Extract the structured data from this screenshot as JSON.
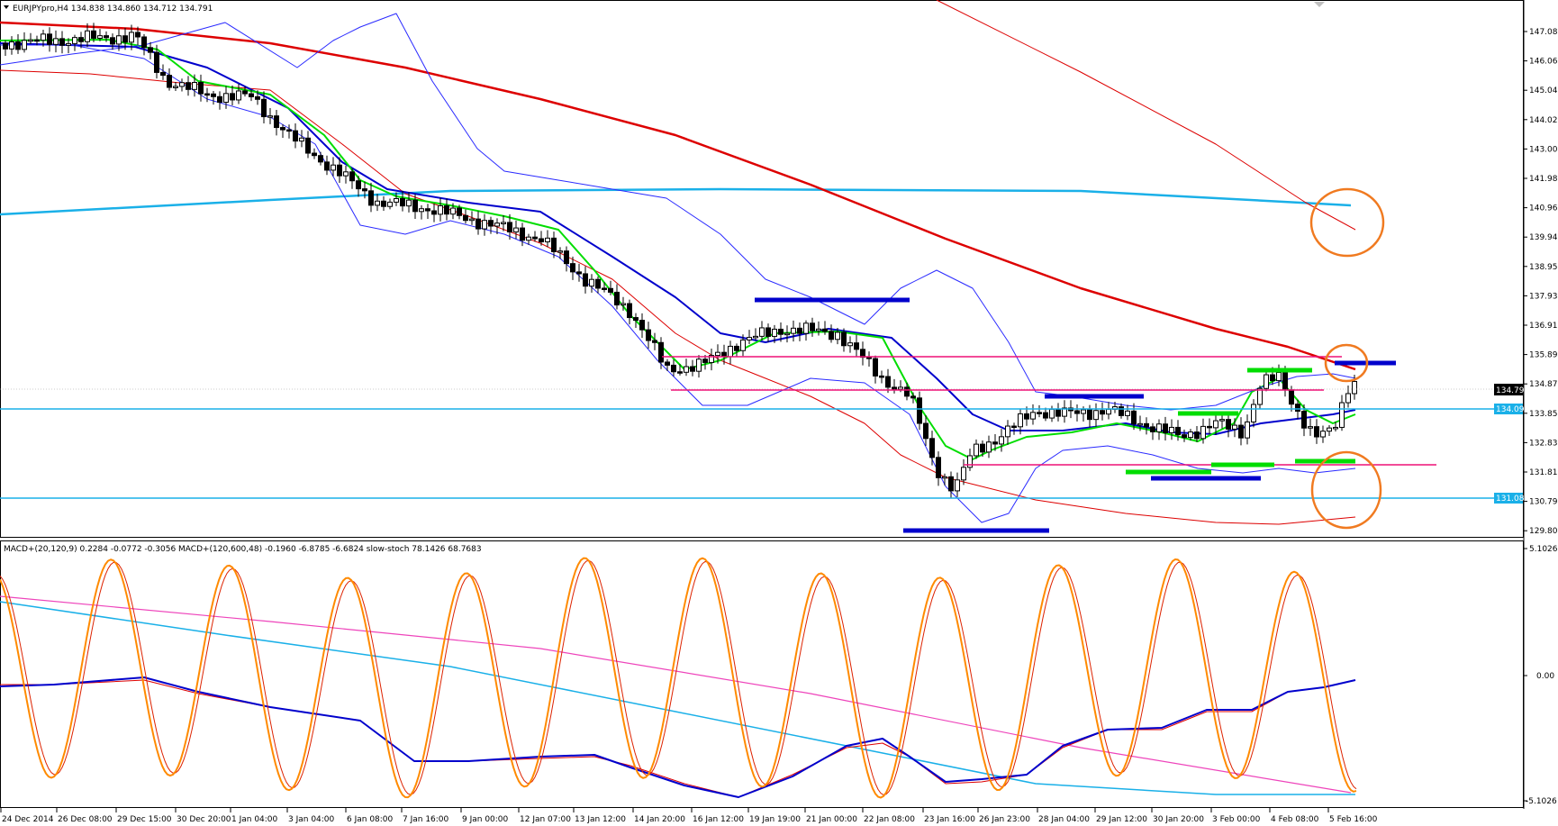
{
  "header": {
    "main_title": "EURJPYpro,H4  134.838 134.860 134.712 134.791",
    "sub_title": "MACD+(20,120,9) 0.2284 -0.0772 -0.3056  MACD+(120,600,48) -0.1960 -6.8785 -6.6824  slow-stoch 78.1426 68.7683"
  },
  "price_axis": {
    "ticks": [
      "147.080",
      "146.060",
      "145.040",
      "144.020",
      "143.000",
      "141.980",
      "140.960",
      "139.940",
      "138.950",
      "137.930",
      "136.910",
      "135.890",
      "134.870",
      "133.850",
      "132.830",
      "131.810",
      "130.790",
      "129.800"
    ],
    "current_price": "134.791",
    "level_upper": "134.097",
    "level_lower": "131.086"
  },
  "osc_axis": {
    "ticks": [
      "5.1026",
      "0.00",
      "-5.1026"
    ]
  },
  "time_axis": {
    "labels": [
      "24 Dec 2014",
      "26 Dec 08:00",
      "29 Dec 15:00",
      "30 Dec 20:00",
      "1 Jan 04:00",
      "3 Jan 04:00",
      "6 Jan 08:00",
      "7 Jan 16:00",
      "9 Jan 00:00",
      "12 Jan 07:00",
      "13 Jan 12:00",
      "14 Jan 20:00",
      "16 Jan 12:00",
      "19 Jan 19:00",
      "21 Jan 00:00",
      "22 Jan 08:00",
      "23 Jan 16:00",
      "26 Jan 23:00",
      "28 Jan 04:00",
      "29 Jan 12:00",
      "30 Jan 20:00",
      "3 Feb 00:00",
      "4 Feb 08:00",
      "5 Feb 16:00"
    ]
  },
  "colors": {
    "candle": "#000000",
    "ma_green": "#00dd00",
    "ma_blue": "#0000cc",
    "ma_red": "#dd0000",
    "ma_cyan": "#1ab0e8",
    "bands": "#2a2aff",
    "level_magenta": "#ee1177",
    "marker_orange": "#f07a20",
    "stoch_orange": "#ff8a00"
  }
}
